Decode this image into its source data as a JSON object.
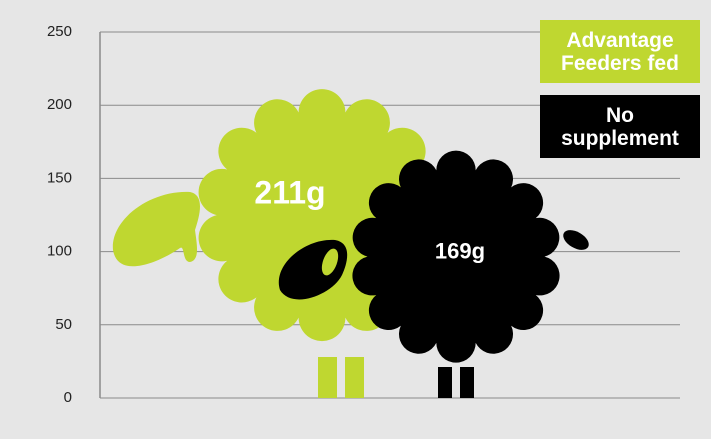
{
  "chart_data": {
    "type": "pictogram",
    "series": [
      {
        "name": "Advantage Feeders fed",
        "color": "#bfd730",
        "values": [
          211
        ],
        "value_labels": [
          "211g"
        ]
      },
      {
        "name": "No supplement",
        "color": "#000000",
        "values": [
          169
        ],
        "value_labels": [
          "169g"
        ]
      }
    ],
    "ylim": [
      0,
      250
    ],
    "yticks": [
      0,
      50,
      100,
      150,
      200,
      250
    ],
    "grid": true
  }
}
